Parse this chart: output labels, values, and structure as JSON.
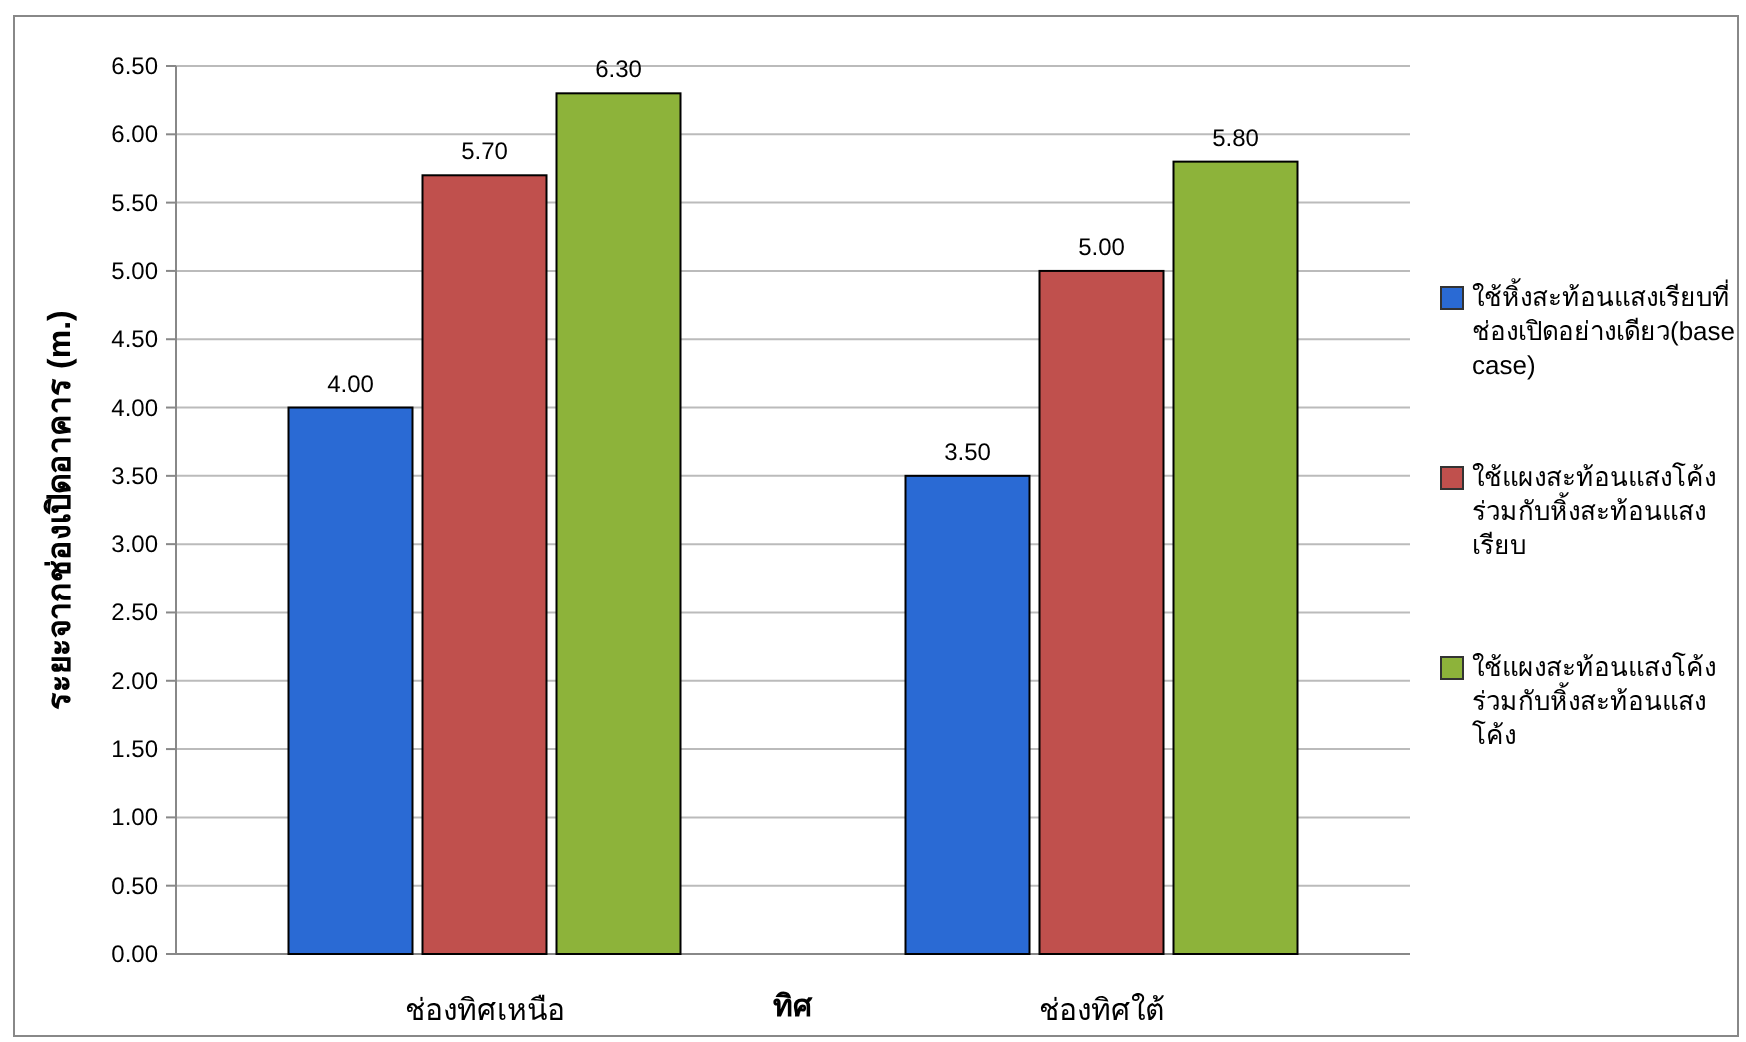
{
  "chart_data": {
    "type": "bar",
    "xlabel": "ทิศ",
    "ylabel": "ระยะจากช่องเปิดอาคาร (m.)",
    "categories": [
      "ช่องทิศเหนือ",
      "ช่องทิศใต้"
    ],
    "series": [
      {
        "name": "ใช้หิ้งสะท้อนแสงเรียบที่ช่องเปิดอย่างเดียว(base case)",
        "color": "#2a6ad4",
        "values": [
          4.0,
          3.5
        ]
      },
      {
        "name": "ใช้แผงสะท้อนแสงโค้งร่วมกับหิ้งสะท้อนแสงเรียบ",
        "color": "#c0504d",
        "values": [
          5.7,
          5.0
        ]
      },
      {
        "name": "ใช้แผงสะท้อนแสงโค้งร่วมกับหิ้งสะท้อนแสงโค้ง",
        "color": "#8db33a",
        "values": [
          6.3,
          5.8
        ]
      }
    ],
    "value_labels": [
      [
        "4.00",
        "3.50"
      ],
      [
        "5.70",
        "5.00"
      ],
      [
        "6.30",
        "5.80"
      ]
    ],
    "ylim": [
      0,
      6.5
    ],
    "yticks": [
      {
        "value": 0,
        "label": "0.00"
      },
      {
        "value": 0.5,
        "label": "0.50"
      },
      {
        "value": 1,
        "label": "1.00"
      },
      {
        "value": 1.5,
        "label": "1.50"
      },
      {
        "value": 2,
        "label": "2.00"
      },
      {
        "value": 2.5,
        "label": "2.50"
      },
      {
        "value": 3,
        "label": "3.00"
      },
      {
        "value": 3.5,
        "label": "3.50"
      },
      {
        "value": 4,
        "label": "4.00"
      },
      {
        "value": 4.5,
        "label": "4.50"
      },
      {
        "value": 5,
        "label": "5.00"
      },
      {
        "value": 5.5,
        "label": "5.50"
      },
      {
        "value": 6,
        "label": "6.00"
      },
      {
        "value": 6.5,
        "label": "6.50"
      }
    ],
    "grid": "y",
    "legend": "right"
  }
}
